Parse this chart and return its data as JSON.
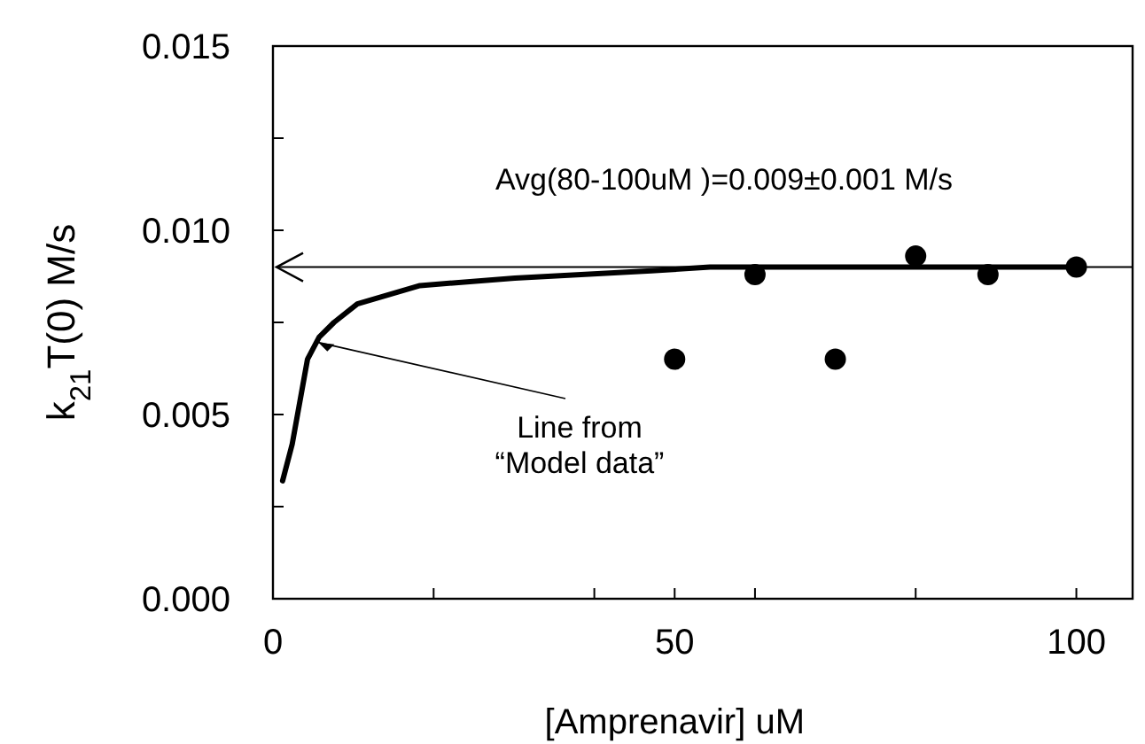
{
  "chart_data": {
    "type": "scatter",
    "xlabel": "[Amprenavir] uM",
    "ylabel": "k$_{21}$T(0)  M/s",
    "xlim": [
      0,
      107
    ],
    "ylim": [
      0,
      0.015
    ],
    "xticks": [
      {
        "value": 0,
        "label": "0"
      },
      {
        "value": 20,
        "label": null
      },
      {
        "value": 40,
        "label": null
      },
      {
        "value": 50,
        "label": "50"
      },
      {
        "value": 60,
        "label": null
      },
      {
        "value": 80,
        "label": null
      },
      {
        "value": 100,
        "label": "100"
      }
    ],
    "yticks": [
      {
        "value": 0,
        "label": "0.000"
      },
      {
        "value": 0.0025,
        "label": null
      },
      {
        "value": 0.005,
        "label": "0.005"
      },
      {
        "value": 0.0075,
        "label": null
      },
      {
        "value": 0.01,
        "label": "0.010"
      },
      {
        "value": 0.0125,
        "label": null
      },
      {
        "value": 0.015,
        "label": "0.015"
      }
    ],
    "series": [
      {
        "type": "line",
        "color": "#000000",
        "marker": "none",
        "line_style": "solid",
        "x": [
          1.2,
          2.4,
          4.3,
          5.75,
          7.6,
          10.5,
          18.3,
          30.1,
          47.1,
          54.4,
          58.1,
          100
        ],
        "values": [
          0.0032,
          0.0042,
          0.0065,
          0.0071,
          0.0075,
          0.008,
          0.0085,
          0.0087,
          0.0089,
          0.009,
          0.009,
          0.009
        ]
      },
      {
        "color": "#000000",
        "marker": "circle",
        "x": [
          50,
          60,
          70,
          80,
          89,
          100
        ],
        "values": [
          0.0065,
          0.0088,
          0.0065,
          0.0093,
          0.0088,
          0.009
        ]
      }
    ],
    "ref_lines": [
      {
        "axis": "y",
        "value": 0.009,
        "label": "Avg(80-100uM )=0.009±0.001 M/s",
        "color": "#000000"
      }
    ],
    "annotations": [
      {
        "text": "Line from\n“Model data”",
        "x": 5,
        "y": 0.0071
      }
    ],
    "grid": false
  }
}
